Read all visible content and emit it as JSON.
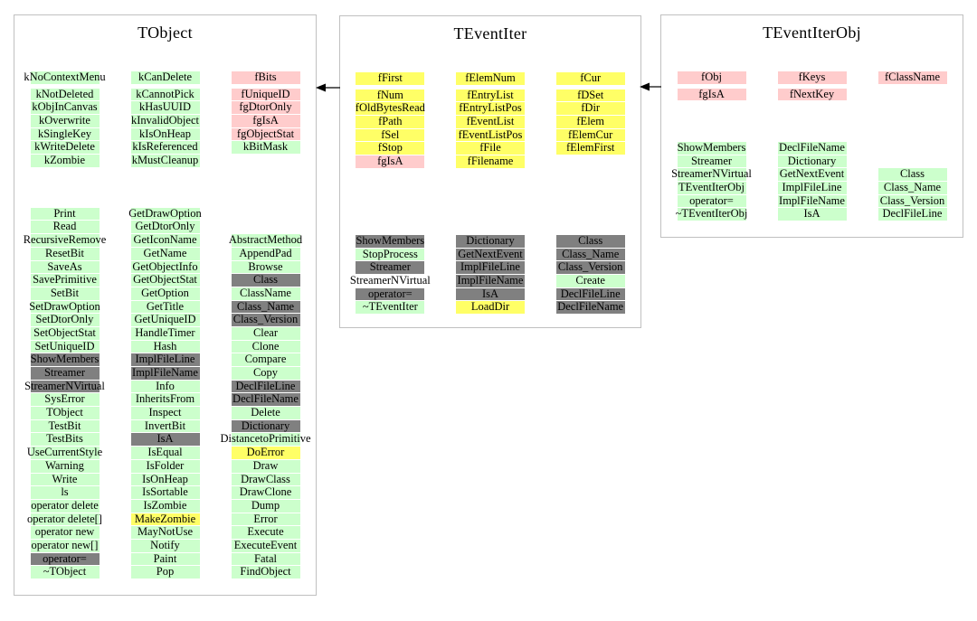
{
  "colors": {
    "green": "#ccffcc",
    "pink": "#ffcccc",
    "yellow": "#ffff66",
    "gray": "#808080",
    "none": "transparent"
  },
  "classes": [
    {
      "name": "TObject",
      "attributes": [
        [
          {
            "label": "kNoContextMenu",
            "bg": "green"
          },
          {
            "label": "kNotDeleted",
            "bg": "green"
          },
          {
            "label": "kObjInCanvas",
            "bg": "green"
          },
          {
            "label": "kOverwrite",
            "bg": "green"
          },
          {
            "label": "kSingleKey",
            "bg": "green"
          },
          {
            "label": "kWriteDelete",
            "bg": "green"
          },
          {
            "label": "kZombie",
            "bg": "green"
          }
        ],
        [
          {
            "label": "kCanDelete",
            "bg": "green"
          },
          {
            "label": "kCannotPick",
            "bg": "green"
          },
          {
            "label": "kHasUUID",
            "bg": "green"
          },
          {
            "label": "kInvalidObject",
            "bg": "green"
          },
          {
            "label": "kIsOnHeap",
            "bg": "green"
          },
          {
            "label": "kIsReferenced",
            "bg": "green"
          },
          {
            "label": "kMustCleanup",
            "bg": "green"
          }
        ],
        [
          {
            "label": "fBits",
            "bg": "pink"
          },
          {
            "label": "fUniqueID",
            "bg": "pink"
          },
          {
            "label": "fgDtorOnly",
            "bg": "pink"
          },
          {
            "label": "fgIsA",
            "bg": "pink"
          },
          {
            "label": "fgObjectStat",
            "bg": "pink"
          },
          {
            "label": "kBitMask",
            "bg": "green"
          }
        ]
      ],
      "methods": [
        [
          {
            "label": "Print",
            "bg": "green"
          },
          {
            "label": "Read",
            "bg": "green"
          },
          {
            "label": "RecursiveRemove",
            "bg": "green"
          },
          {
            "label": "ResetBit",
            "bg": "green"
          },
          {
            "label": "SaveAs",
            "bg": "green"
          },
          {
            "label": "SavePrimitive",
            "bg": "green"
          },
          {
            "label": "SetBit",
            "bg": "green"
          },
          {
            "label": "SetDrawOption",
            "bg": "green"
          },
          {
            "label": "SetDtorOnly",
            "bg": "green"
          },
          {
            "label": "SetObjectStat",
            "bg": "green"
          },
          {
            "label": "SetUniqueID",
            "bg": "green"
          },
          {
            "label": "ShowMembers",
            "bg": "gray"
          },
          {
            "label": "Streamer",
            "bg": "gray"
          },
          {
            "label": "StreamerNVirtual",
            "bg": "gray"
          },
          {
            "label": "SysError",
            "bg": "green"
          },
          {
            "label": "TObject",
            "bg": "green"
          },
          {
            "label": "TestBit",
            "bg": "green"
          },
          {
            "label": "TestBits",
            "bg": "green"
          },
          {
            "label": "UseCurrentStyle",
            "bg": "green"
          },
          {
            "label": "Warning",
            "bg": "green"
          },
          {
            "label": "Write",
            "bg": "green"
          },
          {
            "label": "ls",
            "bg": "green"
          },
          {
            "label": "operator delete",
            "bg": "green"
          },
          {
            "label": "operator delete[]",
            "bg": "green"
          },
          {
            "label": "operator new",
            "bg": "green"
          },
          {
            "label": "operator new[]",
            "bg": "green"
          },
          {
            "label": "operator=",
            "bg": "gray"
          },
          {
            "label": "~TObject",
            "bg": "green"
          }
        ],
        [
          {
            "label": "GetDrawOption",
            "bg": "green"
          },
          {
            "label": "GetDtorOnly",
            "bg": "green"
          },
          {
            "label": "GetIconName",
            "bg": "green"
          },
          {
            "label": "GetName",
            "bg": "green"
          },
          {
            "label": "GetObjectInfo",
            "bg": "green"
          },
          {
            "label": "GetObjectStat",
            "bg": "green"
          },
          {
            "label": "GetOption",
            "bg": "green"
          },
          {
            "label": "GetTitle",
            "bg": "green"
          },
          {
            "label": "GetUniqueID",
            "bg": "green"
          },
          {
            "label": "HandleTimer",
            "bg": "green"
          },
          {
            "label": "Hash",
            "bg": "green"
          },
          {
            "label": "ImplFileLine",
            "bg": "gray"
          },
          {
            "label": "ImplFileName",
            "bg": "gray"
          },
          {
            "label": "Info",
            "bg": "green"
          },
          {
            "label": "InheritsFrom",
            "bg": "green"
          },
          {
            "label": "Inspect",
            "bg": "green"
          },
          {
            "label": "InvertBit",
            "bg": "green"
          },
          {
            "label": "IsA",
            "bg": "gray"
          },
          {
            "label": "IsEqual",
            "bg": "green"
          },
          {
            "label": "IsFolder",
            "bg": "green"
          },
          {
            "label": "IsOnHeap",
            "bg": "green"
          },
          {
            "label": "IsSortable",
            "bg": "green"
          },
          {
            "label": "IsZombie",
            "bg": "green"
          },
          {
            "label": "MakeZombie",
            "bg": "yellow"
          },
          {
            "label": "MayNotUse",
            "bg": "green"
          },
          {
            "label": "Notify",
            "bg": "green"
          },
          {
            "label": "Paint",
            "bg": "green"
          },
          {
            "label": "Pop",
            "bg": "green"
          }
        ],
        [
          {
            "label": "AbstractMethod",
            "bg": "green"
          },
          {
            "label": "AppendPad",
            "bg": "green"
          },
          {
            "label": "Browse",
            "bg": "green"
          },
          {
            "label": "Class",
            "bg": "gray"
          },
          {
            "label": "ClassName",
            "bg": "green"
          },
          {
            "label": "Class_Name",
            "bg": "gray"
          },
          {
            "label": "Class_Version",
            "bg": "gray"
          },
          {
            "label": "Clear",
            "bg": "green"
          },
          {
            "label": "Clone",
            "bg": "green"
          },
          {
            "label": "Compare",
            "bg": "green"
          },
          {
            "label": "Copy",
            "bg": "green"
          },
          {
            "label": "DeclFileLine",
            "bg": "gray"
          },
          {
            "label": "DeclFileName",
            "bg": "gray"
          },
          {
            "label": "Delete",
            "bg": "green"
          },
          {
            "label": "Dictionary",
            "bg": "gray"
          },
          {
            "label": "DistancetoPrimitive",
            "bg": "green"
          },
          {
            "label": "DoError",
            "bg": "yellow"
          },
          {
            "label": "Draw",
            "bg": "green"
          },
          {
            "label": "DrawClass",
            "bg": "green"
          },
          {
            "label": "DrawClone",
            "bg": "green"
          },
          {
            "label": "Dump",
            "bg": "green"
          },
          {
            "label": "Error",
            "bg": "green"
          },
          {
            "label": "Execute",
            "bg": "green"
          },
          {
            "label": "ExecuteEvent",
            "bg": "green"
          },
          {
            "label": "Fatal",
            "bg": "green"
          },
          {
            "label": "FindObject",
            "bg": "green"
          }
        ]
      ]
    },
    {
      "name": "TEventIter",
      "attributes": [
        [
          {
            "label": "fFirst",
            "bg": "yellow"
          },
          {
            "label": "fNum",
            "bg": "yellow"
          },
          {
            "label": "fOldBytesRead",
            "bg": "yellow"
          },
          {
            "label": "fPath",
            "bg": "yellow"
          },
          {
            "label": "fSel",
            "bg": "yellow"
          },
          {
            "label": "fStop",
            "bg": "yellow"
          },
          {
            "label": "fgIsA",
            "bg": "pink"
          }
        ],
        [
          {
            "label": "fElemNum",
            "bg": "yellow"
          },
          {
            "label": "fEntryList",
            "bg": "yellow"
          },
          {
            "label": "fEntryListPos",
            "bg": "yellow"
          },
          {
            "label": "fEventList",
            "bg": "yellow"
          },
          {
            "label": "fEventListPos",
            "bg": "yellow"
          },
          {
            "label": "fFile",
            "bg": "yellow"
          },
          {
            "label": "fFilename",
            "bg": "yellow"
          }
        ],
        [
          {
            "label": "fCur",
            "bg": "yellow"
          },
          {
            "label": "fDSet",
            "bg": "yellow"
          },
          {
            "label": "fDir",
            "bg": "yellow"
          },
          {
            "label": "fElem",
            "bg": "yellow"
          },
          {
            "label": "fElemCur",
            "bg": "yellow"
          },
          {
            "label": "fElemFirst",
            "bg": "yellow"
          }
        ]
      ],
      "methods": [
        [
          {
            "label": "ShowMembers",
            "bg": "gray"
          },
          {
            "label": "StopProcess",
            "bg": "green"
          },
          {
            "label": "Streamer",
            "bg": "gray"
          },
          {
            "label": "StreamerNVirtual",
            "bg": "none"
          },
          {
            "label": "operator=",
            "bg": "gray"
          },
          {
            "label": "~TEventIter",
            "bg": "green"
          }
        ],
        [
          {
            "label": "Dictionary",
            "bg": "gray"
          },
          {
            "label": "GetNextEvent",
            "bg": "gray"
          },
          {
            "label": "ImplFileLine",
            "bg": "gray"
          },
          {
            "label": "ImplFileName",
            "bg": "gray"
          },
          {
            "label": "IsA",
            "bg": "gray"
          },
          {
            "label": "LoadDir",
            "bg": "yellow"
          }
        ],
        [
          {
            "label": "Class",
            "bg": "gray"
          },
          {
            "label": "Class_Name",
            "bg": "gray"
          },
          {
            "label": "Class_Version",
            "bg": "gray"
          },
          {
            "label": "Create",
            "bg": "green"
          },
          {
            "label": "DeclFileLine",
            "bg": "gray"
          },
          {
            "label": "DeclFileName",
            "bg": "gray"
          }
        ]
      ]
    },
    {
      "name": "TEventIterObj",
      "attributes": [
        [
          {
            "label": "fObj",
            "bg": "pink"
          },
          {
            "label": "fgIsA",
            "bg": "pink"
          }
        ],
        [
          {
            "label": "fKeys",
            "bg": "pink"
          },
          {
            "label": "fNextKey",
            "bg": "pink"
          }
        ],
        [
          {
            "label": "fClassName",
            "bg": "pink"
          }
        ]
      ],
      "methods": [
        [
          {
            "label": "ShowMembers",
            "bg": "green"
          },
          {
            "label": "Streamer",
            "bg": "green"
          },
          {
            "label": "StreamerNVirtual",
            "bg": "green"
          },
          {
            "label": "TEventIterObj",
            "bg": "green"
          },
          {
            "label": "operator=",
            "bg": "green"
          },
          {
            "label": "~TEventIterObj",
            "bg": "green"
          }
        ],
        [
          {
            "label": "DeclFileName",
            "bg": "green"
          },
          {
            "label": "Dictionary",
            "bg": "green"
          },
          {
            "label": "GetNextEvent",
            "bg": "green"
          },
          {
            "label": "ImplFileLine",
            "bg": "green"
          },
          {
            "label": "ImplFileName",
            "bg": "green"
          },
          {
            "label": "IsA",
            "bg": "green"
          }
        ],
        [
          {
            "label": "Class",
            "bg": "green"
          },
          {
            "label": "Class_Name",
            "bg": "green"
          },
          {
            "label": "Class_Version",
            "bg": "green"
          },
          {
            "label": "DeclFileLine",
            "bg": "green"
          }
        ]
      ]
    }
  ],
  "arrows": [
    {
      "name": "inherits-teventiter-from-tobject",
      "direction": "left"
    },
    {
      "name": "inherits-teventiterobj-from-teventiter",
      "direction": "left"
    }
  ]
}
